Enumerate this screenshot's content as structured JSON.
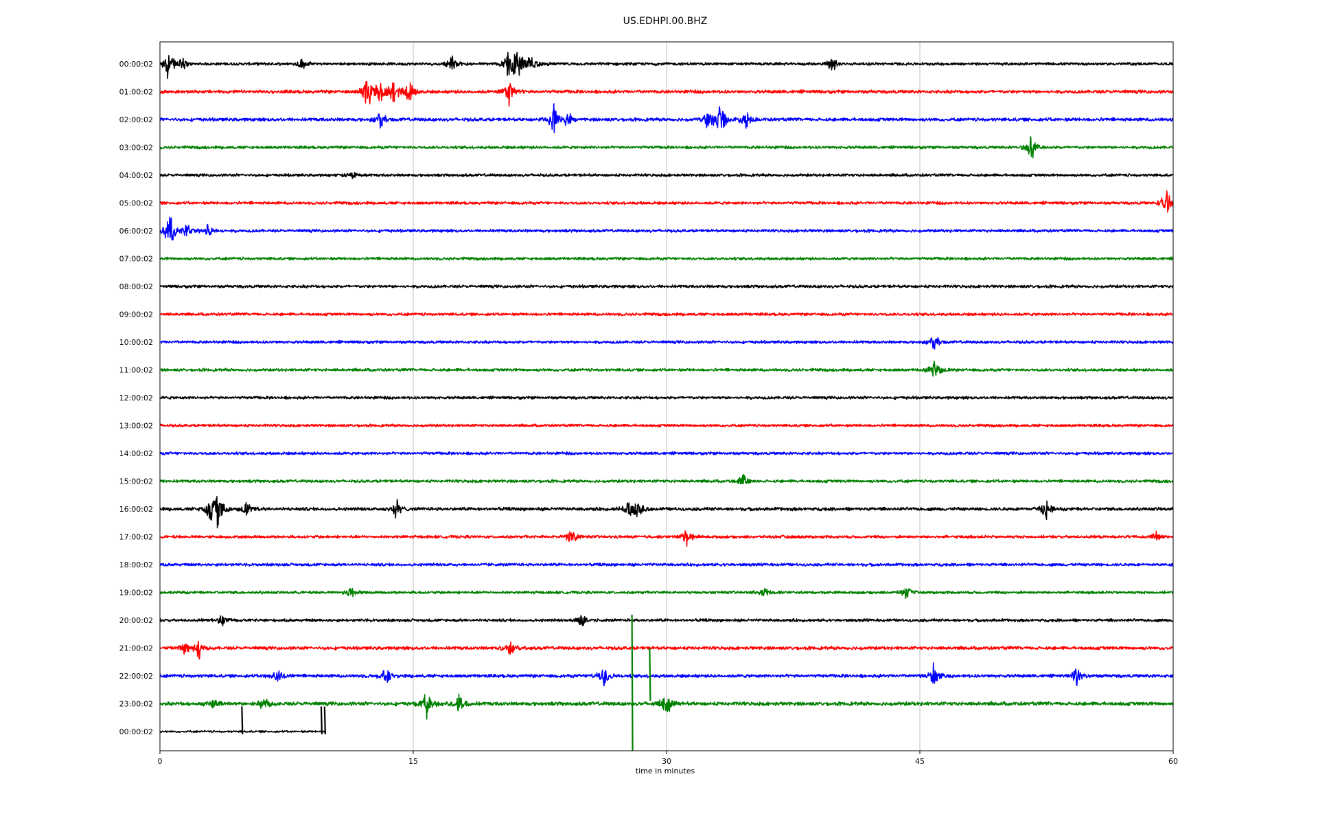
{
  "chart_data": {
    "type": "line",
    "title": "US.EDHPI.00.BHZ",
    "xlabel": "time in minutes",
    "ylabel": "",
    "xlim": [
      0,
      60
    ],
    "x_ticks": [
      0,
      15,
      30,
      45,
      60
    ],
    "x_tick_labels": [
      "0",
      "15",
      "30",
      "45",
      "60"
    ],
    "grid": "vertical",
    "legend": "none",
    "color_cycle": [
      "#000000",
      "#ff0000",
      "#0000ff",
      "#008000"
    ],
    "series": [
      {
        "label": "00:00:02",
        "color": "#000000",
        "noise": 0.06,
        "events": [
          {
            "t": 0.5,
            "a": 0.7
          },
          {
            "t": 1.3,
            "a": 0.3
          },
          {
            "t": 8.4,
            "a": 0.3
          },
          {
            "t": 17.3,
            "a": 0.35
          },
          {
            "t": 20.7,
            "a": 1.0
          },
          {
            "t": 21.2,
            "a": 0.8
          },
          {
            "t": 22.0,
            "a": 0.5
          },
          {
            "t": 39.8,
            "a": 0.4
          }
        ]
      },
      {
        "label": "01:00:02",
        "color": "#ff0000",
        "noise": 0.07,
        "events": [
          {
            "t": 12.3,
            "a": 0.9
          },
          {
            "t": 13.0,
            "a": 0.8
          },
          {
            "t": 13.8,
            "a": 0.7
          },
          {
            "t": 14.8,
            "a": 0.6
          },
          {
            "t": 20.7,
            "a": 0.7
          }
        ]
      },
      {
        "label": "02:00:02",
        "color": "#0000ff",
        "noise": 0.07,
        "events": [
          {
            "t": 13.1,
            "a": 0.4
          },
          {
            "t": 23.3,
            "a": 0.7
          },
          {
            "t": 24.2,
            "a": 0.4
          },
          {
            "t": 32.5,
            "a": 0.6
          },
          {
            "t": 33.2,
            "a": 1.0
          },
          {
            "t": 34.7,
            "a": 0.4
          }
        ]
      },
      {
        "label": "03:00:02",
        "color": "#008000",
        "noise": 0.06,
        "events": [
          {
            "t": 51.6,
            "a": 0.6
          }
        ]
      },
      {
        "label": "04:00:02",
        "color": "#000000",
        "noise": 0.06,
        "events": [
          {
            "t": 11.4,
            "a": 0.3
          }
        ]
      },
      {
        "label": "05:00:02",
        "color": "#ff0000",
        "noise": 0.06,
        "events": [
          {
            "t": 59.6,
            "a": 0.7
          }
        ]
      },
      {
        "label": "06:00:02",
        "color": "#0000ff",
        "noise": 0.06,
        "events": [
          {
            "t": 0.6,
            "a": 0.9
          },
          {
            "t": 1.6,
            "a": 0.4
          },
          {
            "t": 2.8,
            "a": 0.4
          }
        ]
      },
      {
        "label": "07:00:02",
        "color": "#008000",
        "noise": 0.06,
        "events": []
      },
      {
        "label": "08:00:02",
        "color": "#000000",
        "noise": 0.06,
        "events": []
      },
      {
        "label": "09:00:02",
        "color": "#ff0000",
        "noise": 0.06,
        "events": []
      },
      {
        "label": "10:00:02",
        "color": "#0000ff",
        "noise": 0.06,
        "events": [
          {
            "t": 45.9,
            "a": 0.4
          }
        ]
      },
      {
        "label": "11:00:02",
        "color": "#008000",
        "noise": 0.06,
        "events": [
          {
            "t": 45.9,
            "a": 0.7
          }
        ]
      },
      {
        "label": "12:00:02",
        "color": "#000000",
        "noise": 0.06,
        "events": []
      },
      {
        "label": "13:00:02",
        "color": "#ff0000",
        "noise": 0.06,
        "events": []
      },
      {
        "label": "14:00:02",
        "color": "#0000ff",
        "noise": 0.06,
        "events": []
      },
      {
        "label": "15:00:02",
        "color": "#008000",
        "noise": 0.06,
        "events": [
          {
            "t": 34.5,
            "a": 0.3
          }
        ]
      },
      {
        "label": "16:00:02",
        "color": "#000000",
        "noise": 0.07,
        "events": [
          {
            "t": 3.0,
            "a": 0.6
          },
          {
            "t": 3.4,
            "a": 1.0
          },
          {
            "t": 5.1,
            "a": 0.3
          },
          {
            "t": 14.0,
            "a": 0.5
          },
          {
            "t": 27.8,
            "a": 0.6
          },
          {
            "t": 28.3,
            "a": 0.4
          },
          {
            "t": 52.5,
            "a": 0.5
          }
        ]
      },
      {
        "label": "17:00:02",
        "color": "#ff0000",
        "noise": 0.06,
        "events": [
          {
            "t": 24.4,
            "a": 0.4
          },
          {
            "t": 31.2,
            "a": 0.4
          },
          {
            "t": 59.0,
            "a": 0.2
          }
        ]
      },
      {
        "label": "18:00:02",
        "color": "#0000ff",
        "noise": 0.06,
        "events": []
      },
      {
        "label": "19:00:02",
        "color": "#008000",
        "noise": 0.06,
        "events": [
          {
            "t": 11.3,
            "a": 0.3
          },
          {
            "t": 35.8,
            "a": 0.3
          },
          {
            "t": 44.2,
            "a": 0.3
          }
        ]
      },
      {
        "label": "20:00:02",
        "color": "#000000",
        "noise": 0.06,
        "events": [
          {
            "t": 3.7,
            "a": 0.3
          },
          {
            "t": 25.0,
            "a": 0.4
          }
        ]
      },
      {
        "label": "21:00:02",
        "color": "#ff0000",
        "noise": 0.07,
        "events": [
          {
            "t": 1.5,
            "a": 0.4
          },
          {
            "t": 2.3,
            "a": 0.5
          },
          {
            "t": 20.7,
            "a": 0.4
          }
        ]
      },
      {
        "label": "22:00:02",
        "color": "#0000ff",
        "noise": 0.07,
        "events": [
          {
            "t": 7.0,
            "a": 0.3
          },
          {
            "t": 13.4,
            "a": 0.4
          },
          {
            "t": 26.3,
            "a": 0.6
          },
          {
            "t": 45.8,
            "a": 0.5
          },
          {
            "t": 54.3,
            "a": 0.4
          }
        ]
      },
      {
        "label": "23:00:02",
        "color": "#008000",
        "noise": 0.08,
        "events": [
          {
            "t": 3.2,
            "a": 0.3
          },
          {
            "t": 6.2,
            "a": 0.4
          },
          {
            "t": 15.8,
            "a": 0.6
          },
          {
            "t": 17.7,
            "a": 0.5
          },
          {
            "t": 30.0,
            "a": 0.6
          }
        ]
      },
      {
        "label": "00:00:02",
        "color": "#000000",
        "noise": 0.04,
        "events": []
      }
    ],
    "spikes": [
      {
        "row": 21,
        "t": 27.95,
        "from": -5.0,
        "to": 1.2,
        "color": "#008000"
      },
      {
        "row": 22,
        "t": 29.0,
        "from": -0.9,
        "to": 1.0,
        "color": "#008000"
      },
      {
        "row": 24,
        "t": 4.85,
        "from": -0.1,
        "to": 0.9,
        "color": "#000000"
      },
      {
        "row": 24,
        "t": 9.55,
        "from": -0.1,
        "to": 0.9,
        "color": "#000000"
      },
      {
        "row": 24,
        "t": 9.75,
        "from": -0.1,
        "to": 0.9,
        "color": "#000000"
      }
    ],
    "last_row_end_minute": 9.8
  }
}
